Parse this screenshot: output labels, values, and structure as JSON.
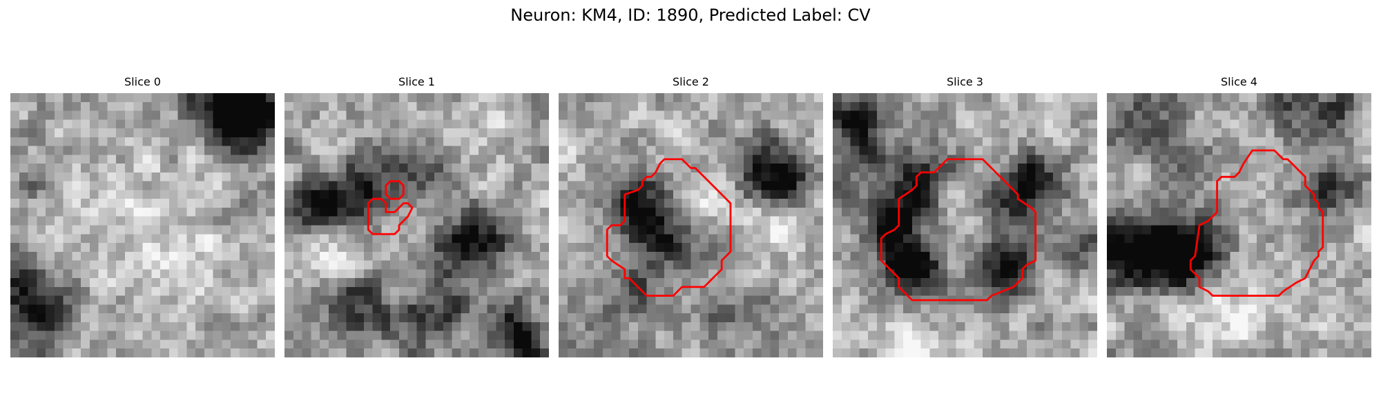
{
  "figure": {
    "title": "Neuron: KM4, ID: 1890, Predicted Label: CV",
    "contour_color": "#ff0000",
    "panels": [
      {
        "title": "Slice 0",
        "seed": 11,
        "blobs": [
          {
            "cx": 26,
            "cy": 2.5,
            "r": 3.0,
            "a": -0.75
          },
          {
            "cx": 27.5,
            "cy": 1.5,
            "r": 2.2,
            "a": -0.45
          },
          {
            "cx": 21,
            "cy": 0,
            "r": 2.0,
            "a": -0.25
          },
          {
            "cx": 3,
            "cy": 24.5,
            "r": 2.8,
            "a": -0.6
          },
          {
            "cx": 1,
            "cy": 20,
            "r": 2.0,
            "a": -0.35
          },
          {
            "cx": 3,
            "cy": 10,
            "r": 2.0,
            "a": -0.2
          },
          {
            "cx": 14,
            "cy": 14,
            "r": 5.0,
            "a": 0.15
          },
          {
            "cx": 22,
            "cy": 21,
            "r": 3.0,
            "a": 0.12
          }
        ],
        "contours": []
      },
      {
        "title": "Slice 1",
        "seed": 23,
        "blobs": [
          {
            "cx": 4,
            "cy": 13,
            "r": 2.3,
            "a": -0.6
          },
          {
            "cx": 9,
            "cy": 11,
            "r": 2.6,
            "a": -0.45
          },
          {
            "cx": 15,
            "cy": 9,
            "r": 3.0,
            "a": -0.3
          },
          {
            "cx": 19,
            "cy": 17,
            "r": 2.5,
            "a": -0.5
          },
          {
            "cx": 23,
            "cy": 17,
            "r": 2.0,
            "a": -0.4
          },
          {
            "cx": 8,
            "cy": 24,
            "r": 2.5,
            "a": -0.45
          },
          {
            "cx": 18,
            "cy": 24,
            "r": 2.5,
            "a": -0.3
          },
          {
            "cx": 25,
            "cy": 26.5,
            "r": 2.5,
            "a": -0.4
          },
          {
            "cx": 27,
            "cy": 28.5,
            "r": 2.0,
            "a": -0.5
          },
          {
            "cx": 14,
            "cy": 27,
            "r": 3.0,
            "a": -0.25
          },
          {
            "cx": 6,
            "cy": 18,
            "r": 2.5,
            "a": 0.25
          },
          {
            "cx": 22,
            "cy": 5,
            "r": 3.0,
            "a": 0.15
          },
          {
            "cx": 17,
            "cy": 14,
            "r": 2.0,
            "a": 0.2
          }
        ],
        "contours": [
          [
            [
              12,
              10
            ],
            [
              13,
              10
            ],
            [
              13.5,
              10.5
            ],
            [
              13.5,
              11.5
            ],
            [
              13,
              12
            ],
            [
              12,
              12
            ],
            [
              11.5,
              11.5
            ],
            [
              11.5,
              10.5
            ]
          ],
          [
            [
              10,
              12
            ],
            [
              11,
              12
            ],
            [
              11.5,
              12.5
            ],
            [
              11.5,
              13.5
            ],
            [
              12.5,
              13.5
            ],
            [
              13.5,
              12.5
            ],
            [
              14,
              12.5
            ],
            [
              14.5,
              13
            ],
            [
              14,
              14
            ],
            [
              13,
              15
            ],
            [
              13,
              15.5
            ],
            [
              12.5,
              16
            ],
            [
              10,
              16
            ],
            [
              9.5,
              15.5
            ],
            [
              9.5,
              12.5
            ]
          ]
        ]
      },
      {
        "title": "Slice 2",
        "seed": 37,
        "blobs": [
          {
            "cx": 11,
            "cy": 14,
            "r": 3.0,
            "a": -0.5
          },
          {
            "cx": 7.5,
            "cy": 11,
            "r": 2.5,
            "a": -0.35
          },
          {
            "cx": 24,
            "cy": 9,
            "r": 2.8,
            "a": -0.55
          },
          {
            "cx": 26.5,
            "cy": 11,
            "r": 1.8,
            "a": -0.35
          },
          {
            "cx": 15,
            "cy": 12,
            "r": 3.0,
            "a": 0.25
          },
          {
            "cx": 14,
            "cy": 17,
            "r": 2.8,
            "a": -0.22
          },
          {
            "cx": 9,
            "cy": 22,
            "r": 2.5,
            "a": -0.3
          },
          {
            "cx": 20,
            "cy": 26,
            "r": 3.5,
            "a": -0.28
          },
          {
            "cx": 25,
            "cy": 15,
            "r": 2.5,
            "a": 0.35
          },
          {
            "cx": 4,
            "cy": 6,
            "r": 3.0,
            "a": 0.12
          },
          {
            "cx": 4,
            "cy": 27,
            "r": 3.0,
            "a": -0.15
          }
        ],
        "contours": [
          [
            [
              12,
              7.5
            ],
            [
              14,
              7.5
            ],
            [
              15,
              8.5
            ],
            [
              15.5,
              8.5
            ],
            [
              16.5,
              9.5
            ],
            [
              18.5,
              11.5
            ],
            [
              19.5,
              12.5
            ],
            [
              19.5,
              18
            ],
            [
              18.5,
              19
            ],
            [
              18.5,
              20
            ],
            [
              17,
              21.5
            ],
            [
              16.5,
              22
            ],
            [
              14,
              22
            ],
            [
              13,
              23
            ],
            [
              10,
              23
            ],
            [
              8,
              21
            ],
            [
              7.5,
              21
            ],
            [
              7.5,
              20
            ],
            [
              6,
              19
            ],
            [
              5.5,
              18.5
            ],
            [
              5.5,
              15.5
            ],
            [
              6,
              15
            ],
            [
              7,
              15
            ],
            [
              7.5,
              14.5
            ],
            [
              7.5,
              11.5
            ],
            [
              9,
              11
            ],
            [
              9.5,
              10.5
            ],
            [
              9.5,
              10
            ],
            [
              10,
              9.5
            ],
            [
              10.5,
              9.5
            ],
            [
              11,
              9
            ],
            [
              11.5,
              8
            ]
          ]
        ]
      },
      {
        "title": "Slice 3",
        "seed": 51,
        "blobs": [
          {
            "cx": 10,
            "cy": 9.5,
            "r": 2.6,
            "a": -0.5
          },
          {
            "cx": 7,
            "cy": 14,
            "r": 2.3,
            "a": -0.55
          },
          {
            "cx": 8.5,
            "cy": 19,
            "r": 2.6,
            "a": -0.55
          },
          {
            "cx": 10,
            "cy": 22,
            "r": 2.2,
            "a": -0.4
          },
          {
            "cx": 21,
            "cy": 12,
            "r": 2.5,
            "a": -0.5
          },
          {
            "cx": 23,
            "cy": 10,
            "r": 2.0,
            "a": -0.4
          },
          {
            "cx": 20,
            "cy": 19,
            "r": 2.5,
            "a": -0.45
          },
          {
            "cx": 19,
            "cy": 22,
            "r": 2.0,
            "a": -0.35
          },
          {
            "cx": 15.5,
            "cy": 15,
            "r": 4.2,
            "a": 0.08
          },
          {
            "cx": 2,
            "cy": 2.5,
            "r": 2.8,
            "a": -0.45
          },
          {
            "cx": 3,
            "cy": 7,
            "r": 2.2,
            "a": -0.3
          },
          {
            "cx": 28,
            "cy": 17,
            "r": 2.0,
            "a": -0.35
          },
          {
            "cx": 8,
            "cy": 27.5,
            "r": 2.5,
            "a": 0.2
          }
        ],
        "contours": [
          [
            [
              13,
              7.5
            ],
            [
              17,
              7.5
            ],
            [
              18.5,
              9
            ],
            [
              20.5,
              11
            ],
            [
              21,
              11.5
            ],
            [
              21,
              12
            ],
            [
              22.5,
              13
            ],
            [
              23,
              13.5
            ],
            [
              23,
              19
            ],
            [
              22,
              19.5
            ],
            [
              21.5,
              20
            ],
            [
              21.5,
              21
            ],
            [
              20.5,
              22
            ],
            [
              18,
              23
            ],
            [
              17.5,
              23.5
            ],
            [
              9,
              23.5
            ],
            [
              8,
              22.5
            ],
            [
              7.5,
              22
            ],
            [
              7.5,
              21
            ],
            [
              6.5,
              20
            ],
            [
              6,
              19.5
            ],
            [
              5.5,
              19
            ],
            [
              5.5,
              16.5
            ],
            [
              6,
              16
            ],
            [
              7,
              15.5
            ],
            [
              7.5,
              15
            ],
            [
              7.5,
              12
            ],
            [
              9,
              11
            ],
            [
              9.5,
              10.5
            ],
            [
              9.5,
              9.5
            ],
            [
              10,
              9
            ],
            [
              11.5,
              9
            ],
            [
              12,
              8.5
            ]
          ]
        ]
      },
      {
        "title": "Slice 4",
        "seed": 67,
        "blobs": [
          {
            "cx": 3.5,
            "cy": 18,
            "r": 3.0,
            "a": -0.5
          },
          {
            "cx": 7,
            "cy": 18.5,
            "r": 2.5,
            "a": -0.55
          },
          {
            "cx": 10.5,
            "cy": 18,
            "r": 2.5,
            "a": -0.55
          },
          {
            "cx": 1,
            "cy": 18,
            "r": 2.0,
            "a": -0.35
          },
          {
            "cx": 4,
            "cy": 4,
            "r": 2.5,
            "a": -0.4
          },
          {
            "cx": 9.5,
            "cy": 8,
            "r": 2.2,
            "a": -0.3
          },
          {
            "cx": 21,
            "cy": 1.8,
            "r": 2.0,
            "a": -0.35
          },
          {
            "cx": 26,
            "cy": 2.5,
            "r": 2.0,
            "a": -0.4
          },
          {
            "cx": 25,
            "cy": 11,
            "r": 2.5,
            "a": -0.35
          },
          {
            "cx": 17,
            "cy": 15,
            "r": 4.5,
            "a": 0.05
          },
          {
            "cx": 15,
            "cy": 26,
            "r": 4.0,
            "a": 0.15
          }
        ],
        "contours": [
          [
            [
              16.5,
              6.5
            ],
            [
              19,
              6.5
            ],
            [
              20,
              7.5
            ],
            [
              20.5,
              7.5
            ],
            [
              21.5,
              8.5
            ],
            [
              22.5,
              9.5
            ],
            [
              22.5,
              10.5
            ],
            [
              23.5,
              11.5
            ],
            [
              23.5,
              12
            ],
            [
              24,
              12.5
            ],
            [
              24,
              13
            ],
            [
              24.5,
              13.5
            ],
            [
              24.5,
              17.5
            ],
            [
              24,
              18
            ],
            [
              24,
              18.5
            ],
            [
              23.5,
              19
            ],
            [
              23,
              20
            ],
            [
              22.5,
              21
            ],
            [
              21.5,
              21.5
            ],
            [
              20,
              22.5
            ],
            [
              19.5,
              23
            ],
            [
              12,
              23
            ],
            [
              11.5,
              22.5
            ],
            [
              10.5,
              22
            ],
            [
              10.5,
              21
            ],
            [
              10,
              20.5
            ],
            [
              9.5,
              20
            ],
            [
              9.5,
              19
            ],
            [
              10,
              18.5
            ],
            [
              10.5,
              15
            ],
            [
              11.5,
              14.5
            ],
            [
              12.5,
              13.5
            ],
            [
              12.5,
              10
            ],
            [
              13,
              9.5
            ],
            [
              14.5,
              9.5
            ],
            [
              15,
              9
            ],
            [
              15.5,
              8
            ]
          ]
        ]
      }
    ]
  }
}
